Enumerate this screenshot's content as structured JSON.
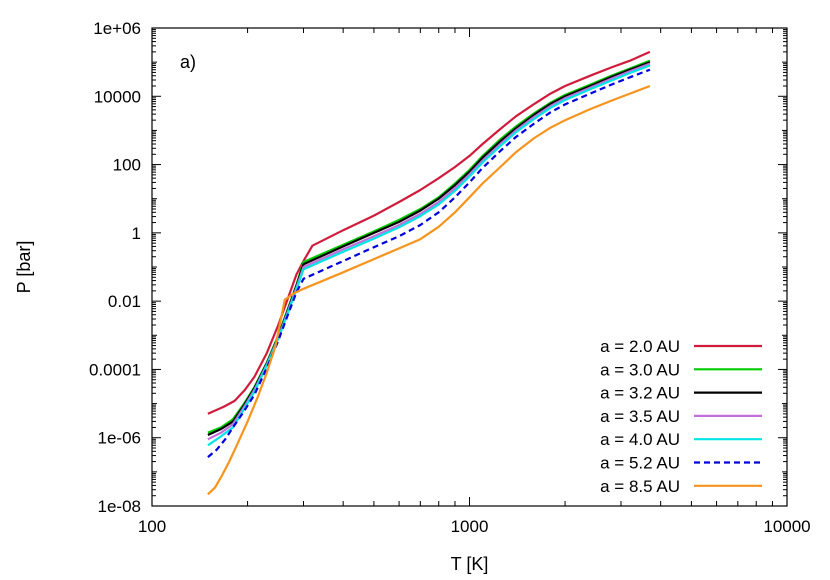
{
  "chart_data": {
    "type": "line",
    "title": "",
    "panel_label": "a)",
    "xlabel": "T [K]",
    "ylabel": "P [bar]",
    "x_scale": "log",
    "y_scale": "log",
    "xlim": [
      100,
      10000
    ],
    "ylim": [
      1e-08,
      1000000.0
    ],
    "x_ticks": [
      {
        "value": 100,
        "label": "100"
      },
      {
        "value": 1000,
        "label": "1000"
      },
      {
        "value": 10000,
        "label": "10000"
      }
    ],
    "y_ticks": [
      {
        "value": 1e-08,
        "label": "1e-08"
      },
      {
        "value": 1e-06,
        "label": "1e-06"
      },
      {
        "value": 0.0001,
        "label": "0.0001"
      },
      {
        "value": 0.01,
        "label": "0.01"
      },
      {
        "value": 1,
        "label": "1"
      },
      {
        "value": 100,
        "label": "100"
      },
      {
        "value": 10000,
        "label": "10000"
      },
      {
        "value": 1000000.0,
        "label": "1e+06"
      }
    ],
    "grid": false,
    "legend_position": "bottom-right",
    "series": [
      {
        "name": "a = 2.0 AU",
        "color": "#d01c3c",
        "dash": "solid",
        "x": [
          150,
          168,
          182,
          196,
          210,
          230,
          250,
          268,
          285,
          300,
          320,
          400,
          500,
          600,
          700,
          800,
          900,
          1000,
          1100,
          1250,
          1400,
          1600,
          1800,
          2000,
          2400,
          2800,
          3200,
          3700
        ],
        "y": [
          5e-06,
          8e-06,
          1.2e-05,
          2.5e-05,
          6e-05,
          0.0003,
          0.002,
          0.012,
          0.06,
          0.15,
          0.42,
          1.2,
          3.2,
          8,
          18,
          40,
          85,
          180,
          400,
          1100,
          2600,
          6000,
          12000,
          20000,
          40000,
          70000,
          110000,
          200000
        ]
      },
      {
        "name": "a = 3.0 AU",
        "color": "#00cc00",
        "dash": "solid",
        "x": [
          150,
          165,
          180,
          195,
          210,
          230,
          250,
          268,
          285,
          300,
          400,
          500,
          600,
          700,
          800,
          900,
          1000,
          1100,
          1250,
          1400,
          1600,
          1800,
          2000,
          2400,
          2800,
          3200,
          3700
        ],
        "y": [
          1.4e-06,
          2e-06,
          3.5e-06,
          1e-05,
          3e-05,
          0.00016,
          0.001,
          0.006,
          0.03,
          0.14,
          0.45,
          1.1,
          2.4,
          5,
          11,
          28,
          70,
          180,
          550,
          1300,
          3200,
          6500,
          11000,
          22000,
          40000,
          65000,
          110000
        ]
      },
      {
        "name": "a = 3.2 AU",
        "color": "#000000",
        "dash": "solid",
        "x": [
          150,
          165,
          180,
          195,
          210,
          230,
          250,
          268,
          285,
          300,
          400,
          500,
          600,
          700,
          800,
          900,
          1000,
          1100,
          1250,
          1400,
          1600,
          1800,
          2000,
          2400,
          2800,
          3200,
          3700
        ],
        "y": [
          1.2e-06,
          1.8e-06,
          3e-06,
          9e-06,
          2.8e-05,
          0.00015,
          0.0009,
          0.0055,
          0.028,
          0.12,
          0.4,
          1.0,
          2.1,
          4.5,
          10,
          25,
          62,
          160,
          480,
          1150,
          2900,
          6000,
          10000,
          20000,
          37000,
          60000,
          100000
        ]
      },
      {
        "name": "a = 3.5 AU",
        "color": "#c070d8",
        "dash": "solid",
        "x": [
          150,
          165,
          180,
          195,
          210,
          230,
          250,
          268,
          285,
          300,
          400,
          500,
          600,
          700,
          800,
          900,
          1000,
          1100,
          1250,
          1400,
          1600,
          1800,
          2000,
          2400,
          2800,
          3200,
          3700
        ],
        "y": [
          9e-07,
          1.4e-06,
          2.5e-06,
          8e-06,
          2.5e-05,
          0.00014,
          0.00085,
          0.005,
          0.025,
          0.1,
          0.33,
          0.8,
          1.7,
          3.6,
          8,
          20,
          52,
          130,
          400,
          1000,
          2500,
          5200,
          8800,
          18000,
          33000,
          54000,
          90000
        ]
      },
      {
        "name": "a = 4.0 AU",
        "color": "#00e5e5",
        "dash": "solid",
        "x": [
          150,
          165,
          180,
          195,
          210,
          230,
          250,
          268,
          285,
          300,
          400,
          500,
          600,
          700,
          800,
          900,
          1000,
          1100,
          1250,
          1400,
          1600,
          1800,
          2000,
          2400,
          2800,
          3200,
          3700
        ],
        "y": [
          6e-07,
          1.1e-06,
          2e-06,
          7e-06,
          2.2e-05,
          0.00013,
          0.0008,
          0.0045,
          0.022,
          0.085,
          0.28,
          0.68,
          1.45,
          3.1,
          6.8,
          17,
          45,
          115,
          350,
          880,
          2200,
          4600,
          7800,
          16000,
          29000,
          48000,
          80000
        ]
      },
      {
        "name": "a = 5.2 AU",
        "color": "#0000dd",
        "dash": "dashed",
        "x": [
          150,
          160,
          170,
          180,
          195,
          210,
          230,
          250,
          268,
          285,
          300,
          400,
          500,
          600,
          700,
          800,
          900,
          1000,
          1100,
          1250,
          1400,
          1600,
          1800,
          2000,
          2400,
          2800,
          3200,
          3700
        ],
        "y": [
          2.7e-07,
          4.5e-07,
          9e-07,
          2e-06,
          6e-06,
          1.8e-05,
          0.00011,
          0.0007,
          0.004,
          0.018,
          0.045,
          0.15,
          0.38,
          0.8,
          1.7,
          4,
          11,
          30,
          80,
          250,
          640,
          1600,
          3400,
          5800,
          12000,
          22000,
          36000,
          60000
        ]
      },
      {
        "name": "a = 8.5 AU",
        "color": "#f7941d",
        "dash": "solid",
        "x": [
          150,
          158,
          165,
          175,
          185,
          200,
          215,
          230,
          245,
          262,
          280,
          300,
          400,
          500,
          600,
          700,
          800,
          900,
          1000,
          1100,
          1250,
          1400,
          1600,
          1800,
          2000,
          2400,
          2800,
          3200,
          3700
        ],
        "y": [
          2.2e-08,
          3.5e-08,
          7e-08,
          2e-07,
          6e-07,
          3e-06,
          1.5e-05,
          8e-05,
          0.0005,
          0.011,
          0.017,
          0.023,
          0.07,
          0.17,
          0.35,
          0.65,
          1.5,
          4,
          11,
          28,
          85,
          230,
          600,
          1200,
          2000,
          4200,
          7500,
          12000,
          20000
        ]
      }
    ]
  }
}
